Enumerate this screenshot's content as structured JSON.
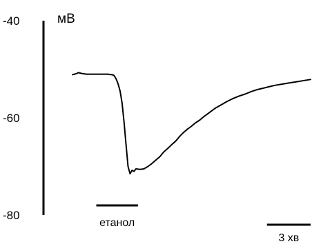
{
  "chart_data": {
    "type": "line",
    "title": "",
    "xlabel": "",
    "ylabel": "мВ",
    "ylim": [
      -80,
      -40
    ],
    "yticks": [
      -40,
      -60,
      -80
    ],
    "grid": false,
    "line_color": "#000000",
    "series": [
      {
        "x": [
          0,
          0.1,
          0.2,
          0.3,
          0.4,
          0.5,
          0.7,
          0.9,
          1.1,
          1.2,
          1.3,
          1.4,
          1.5,
          1.6,
          1.7,
          1.8,
          1.9,
          2.0,
          2.1,
          2.2,
          2.3,
          2.4,
          2.5,
          2.6,
          2.7,
          2.8,
          2.9,
          3.0,
          3.1,
          3.2,
          3.4,
          3.6,
          3.8,
          4.0,
          4.2,
          4.4,
          4.6,
          4.8,
          5.0,
          5.2,
          5.4,
          5.6,
          5.8,
          6.0,
          6.2,
          6.4,
          6.6,
          6.8,
          7.0,
          7.2,
          7.5,
          7.8,
          8.1,
          8.4,
          8.7,
          9.0,
          9.3,
          9.6,
          9.9,
          10.2,
          10.5,
          10.8,
          11.1,
          11.4,
          11.7,
          12.0
        ],
        "y": [
          -51.1,
          -51.0,
          -50.9,
          -50.7,
          -50.8,
          -50.9,
          -51.0,
          -51.0,
          -51.0,
          -51.0,
          -51.0,
          -51.0,
          -51.0,
          -51.0,
          -51.0,
          -51.0,
          -51.1,
          -51.1,
          -51.3,
          -52.0,
          -53.0,
          -54.5,
          -57.0,
          -61.0,
          -65.5,
          -70.0,
          -71.5,
          -70.8,
          -71.0,
          -70.5,
          -70.6,
          -70.5,
          -70.0,
          -69.4,
          -68.7,
          -68.0,
          -67.0,
          -66.3,
          -65.5,
          -64.8,
          -63.8,
          -63.0,
          -62.3,
          -61.7,
          -61.0,
          -60.5,
          -59.8,
          -59.2,
          -58.6,
          -58.0,
          -57.3,
          -56.6,
          -56.0,
          -55.5,
          -55.1,
          -54.6,
          -54.2,
          -53.9,
          -53.6,
          -53.3,
          -53.1,
          -52.9,
          -52.7,
          -52.5,
          -52.3,
          -52.1
        ]
      }
    ],
    "stimulus_bar": {
      "label": "етанол",
      "start": 1.2,
      "end": 3.3
    },
    "scale_bar": {
      "label": "3 хв",
      "length": 2.2
    }
  }
}
